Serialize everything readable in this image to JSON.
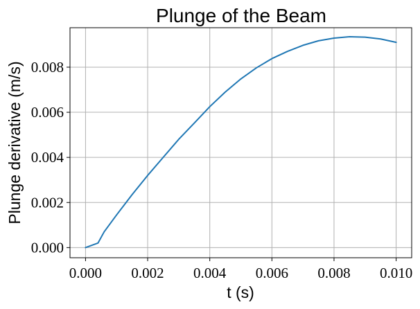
{
  "chart_data": {
    "type": "line",
    "title": "Plunge of the Beam",
    "xlabel": "t (s)",
    "ylabel": "Plunge derivative (m/s)",
    "xlim": [
      -0.0005,
      0.0105
    ],
    "ylim": [
      -0.00045,
      0.00975
    ],
    "grid": true,
    "xticks": [
      0.0,
      0.002,
      0.004,
      0.006,
      0.008,
      0.01
    ],
    "xtick_labels": [
      "0.000",
      "0.002",
      "0.004",
      "0.006",
      "0.008",
      "0.010"
    ],
    "yticks": [
      0.0,
      0.002,
      0.004,
      0.006,
      0.008
    ],
    "ytick_labels": [
      "0.000",
      "0.002",
      "0.004",
      "0.006",
      "0.008"
    ],
    "series": [
      {
        "color": "#1f77b4",
        "x": [
          0.0,
          0.0004,
          0.0006,
          0.001,
          0.0015,
          0.002,
          0.0025,
          0.003,
          0.0035,
          0.004,
          0.0045,
          0.005,
          0.0055,
          0.006,
          0.0065,
          0.007,
          0.0075,
          0.008,
          0.0085,
          0.009,
          0.0095,
          0.01
        ],
        "y": [
          0.0,
          0.0002,
          0.0007,
          0.00145,
          0.00235,
          0.0032,
          0.004,
          0.0048,
          0.00552,
          0.00625,
          0.0069,
          0.00748,
          0.00797,
          0.00838,
          0.0087,
          0.00897,
          0.00917,
          0.00929,
          0.00935,
          0.00933,
          0.00925,
          0.0091
        ]
      }
    ]
  }
}
